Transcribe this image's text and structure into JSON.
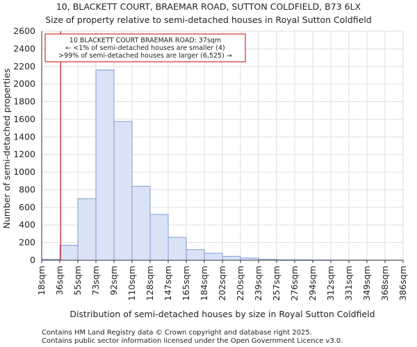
{
  "chart_data": {
    "type": "bar",
    "title": "10, BLACKETT COURT, BRAEMAR ROAD, SUTTON COLDFIELD, B73 6LX",
    "subtitle": "Size of property relative to semi-detached houses in Royal Sutton Coldfield",
    "xlabel": "Distribution of semi-detached houses by size in Royal Sutton Coldfield",
    "ylabel": "Number of semi-detached properties",
    "ylim": [
      0,
      2600
    ],
    "yticks": [
      0,
      200,
      400,
      600,
      800,
      1000,
      1200,
      1400,
      1600,
      1800,
      2000,
      2200,
      2400,
      2600
    ],
    "bin_edges": [
      18,
      36,
      55,
      73,
      92,
      110,
      128,
      147,
      165,
      184,
      202,
      220,
      239,
      257,
      276,
      294,
      312,
      331,
      349,
      368,
      386
    ],
    "xtick_labels": [
      "18sqm",
      "36sqm",
      "55sqm",
      "73sqm",
      "92sqm",
      "110sqm",
      "128sqm",
      "147sqm",
      "165sqm",
      "184sqm",
      "202sqm",
      "220sqm",
      "239sqm",
      "257sqm",
      "276sqm",
      "294sqm",
      "312sqm",
      "331sqm",
      "349sqm",
      "368sqm",
      "386sqm"
    ],
    "values": [
      10,
      170,
      700,
      2160,
      1575,
      840,
      520,
      260,
      120,
      80,
      45,
      25,
      10,
      5,
      5,
      3,
      2,
      2,
      1,
      1
    ],
    "grid": true,
    "bar_color": "#dae3f5",
    "bar_edge_color": "#7a9bd6",
    "marker": {
      "value": 37,
      "color": "#cc0000"
    },
    "annotation": {
      "line1": "10 BLACKETT COURT BRAEMAR ROAD: 37sqm",
      "line2": "← <1% of semi-detached houses are smaller (4)",
      "line3": ">99% of semi-detached houses are larger (6,525) →"
    }
  },
  "footer": {
    "line1": "Contains HM Land Registry data © Crown copyright and database right 2025.",
    "line2": "Contains public sector information licensed under the Open Government Licence v3.0."
  }
}
